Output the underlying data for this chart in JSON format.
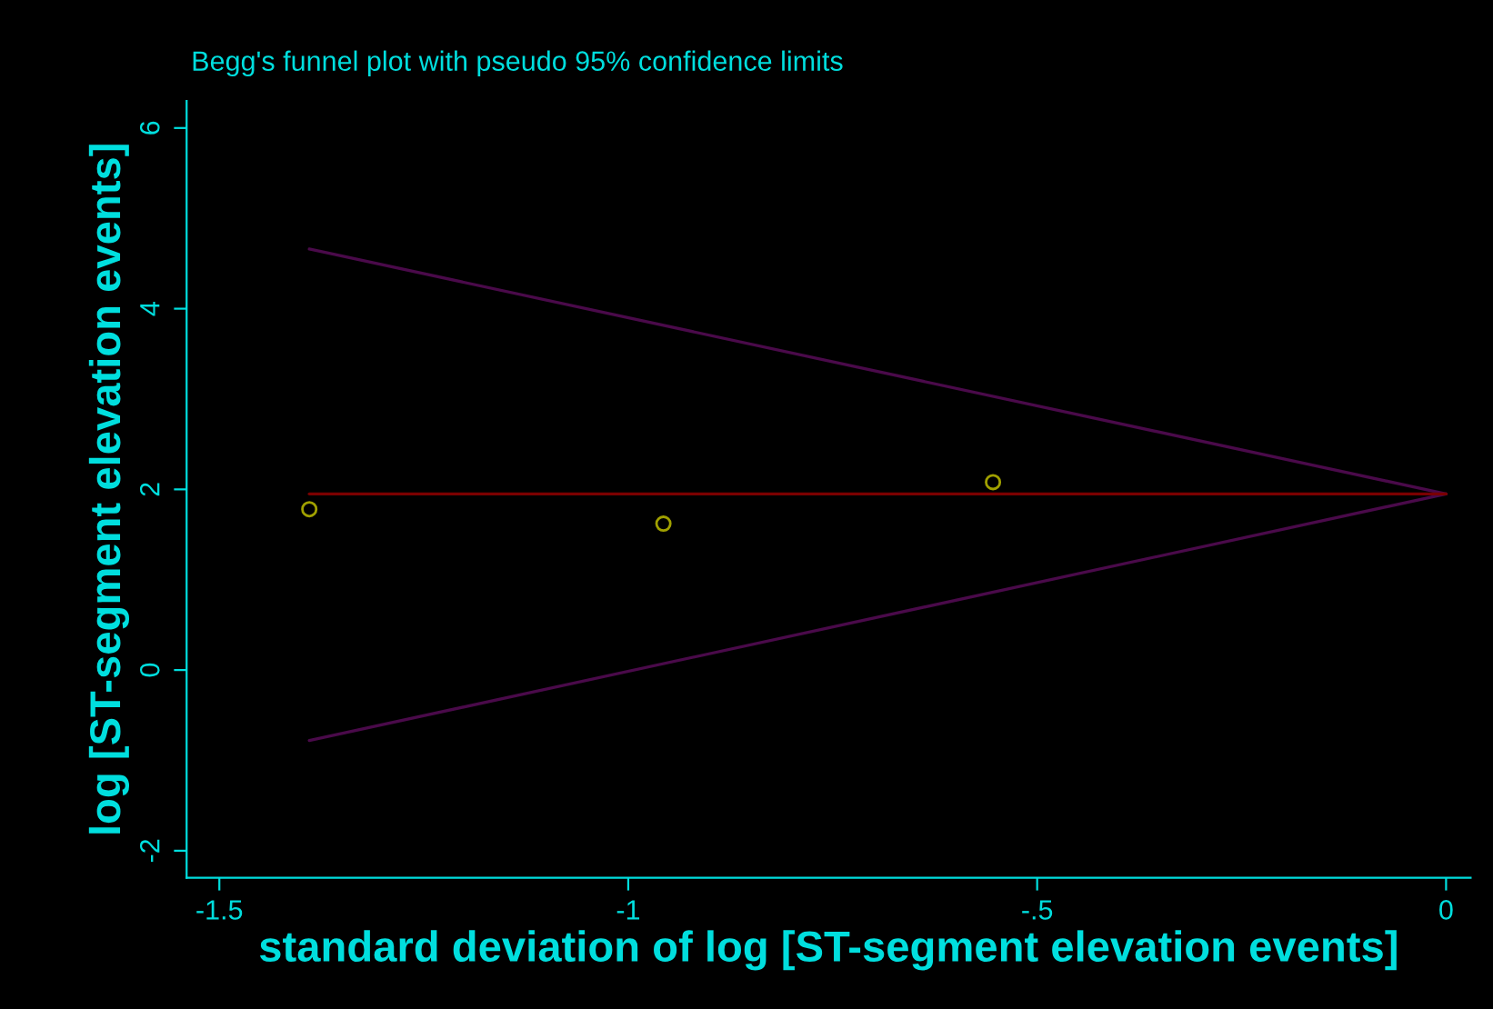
{
  "chart_data": {
    "type": "scatter",
    "title": "Begg's funnel plot with pseudo 95% confidence limits",
    "xlabel": "standard deviation of log [ST-segment elevation events]",
    "ylabel": "log [ST-segment elevation events]",
    "series": [
      {
        "type": "line",
        "color": "#4a0a4a",
        "x": [
          -1.39,
          0
        ],
        "values": [
          4.66,
          1.95
        ]
      },
      {
        "type": "line",
        "color": "#4a0a4a",
        "x": [
          -1.39,
          0
        ],
        "values": [
          -0.78,
          1.95
        ]
      },
      {
        "type": "line",
        "color": "#7a0000",
        "x": [
          -1.39,
          0
        ],
        "values": [
          1.95,
          1.95
        ]
      },
      {
        "type": "scatter",
        "color": "#a0a000",
        "marker": "circle",
        "x": [
          -1.39,
          -0.957,
          -0.554
        ],
        "values": [
          1.78,
          1.62,
          2.08
        ]
      }
    ],
    "xlim": [
      -1.54,
      0.03
    ],
    "ylim": [
      -2.3,
      6.3
    ],
    "xticks": [
      {
        "value": -1.5,
        "label": "-1.5"
      },
      {
        "value": -1,
        "label": "-1"
      },
      {
        "value": -0.5,
        "label": "-.5"
      },
      0
    ],
    "yticks": [
      -2,
      0,
      2,
      4,
      6
    ],
    "marker": "none",
    "grid": false,
    "legend": false
  }
}
